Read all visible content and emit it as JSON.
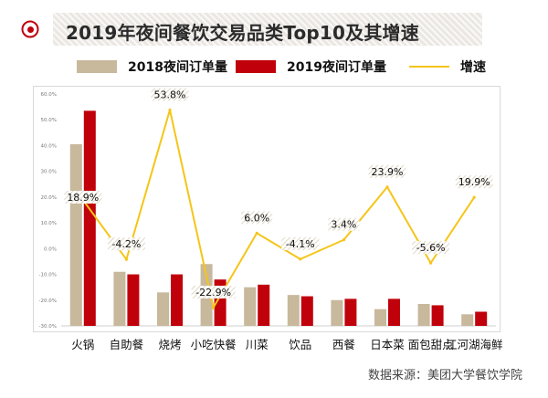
{
  "title": "2019年夜间餐饮交易品类Top10及其增速",
  "source": "数据来源：美团大学餐饮学院",
  "colors": {
    "bar2018": "#c8b89c",
    "bar2019": "#c0000a",
    "growth": "#f5c518",
    "bullet": "#c0000a"
  },
  "legend": {
    "s2018": "2018夜间订单量",
    "s2019": "2019夜间订单量",
    "growth": "增速"
  },
  "chart_data": {
    "type": "bar+line",
    "categories": [
      "火锅",
      "自助餐",
      "烧烤",
      "小吃快餐",
      "川菜",
      "饮品",
      "西餐",
      "日本菜",
      "面包甜点",
      "江河湖海鲜"
    ],
    "y_tick_labels": [
      "60.0%",
      "50.0%",
      "40.0%",
      "30.0%",
      "20.0%",
      "10.0%",
      "0.0%",
      "-10.0%",
      "-20.0%",
      "-30.0%"
    ],
    "ylim": [
      -30,
      60
    ],
    "grid": false,
    "series": [
      {
        "name": "2018夜间订单量",
        "type": "bar",
        "values": [
          40.5,
          -9.0,
          -17.0,
          -6.0,
          -15.0,
          -18.0,
          -20.0,
          -23.5,
          -21.5,
          -25.5
        ]
      },
      {
        "name": "2019夜间订单量",
        "type": "bar",
        "values": [
          53.5,
          -10.0,
          -10.0,
          -12.0,
          -14.0,
          -18.5,
          -19.5,
          -19.5,
          -22.0,
          -24.5
        ]
      },
      {
        "name": "增速",
        "type": "line",
        "values": [
          18.9,
          -4.2,
          53.8,
          -22.9,
          6.0,
          -4.1,
          3.4,
          23.9,
          -5.6,
          19.9
        ]
      }
    ],
    "data_labels": [
      "18.9%",
      "-4.2%",
      "53.8%",
      "-22.9%",
      "6.0%",
      "-4.1%",
      "3.4%",
      "23.9%",
      "-5.6%",
      "19.9%"
    ]
  }
}
